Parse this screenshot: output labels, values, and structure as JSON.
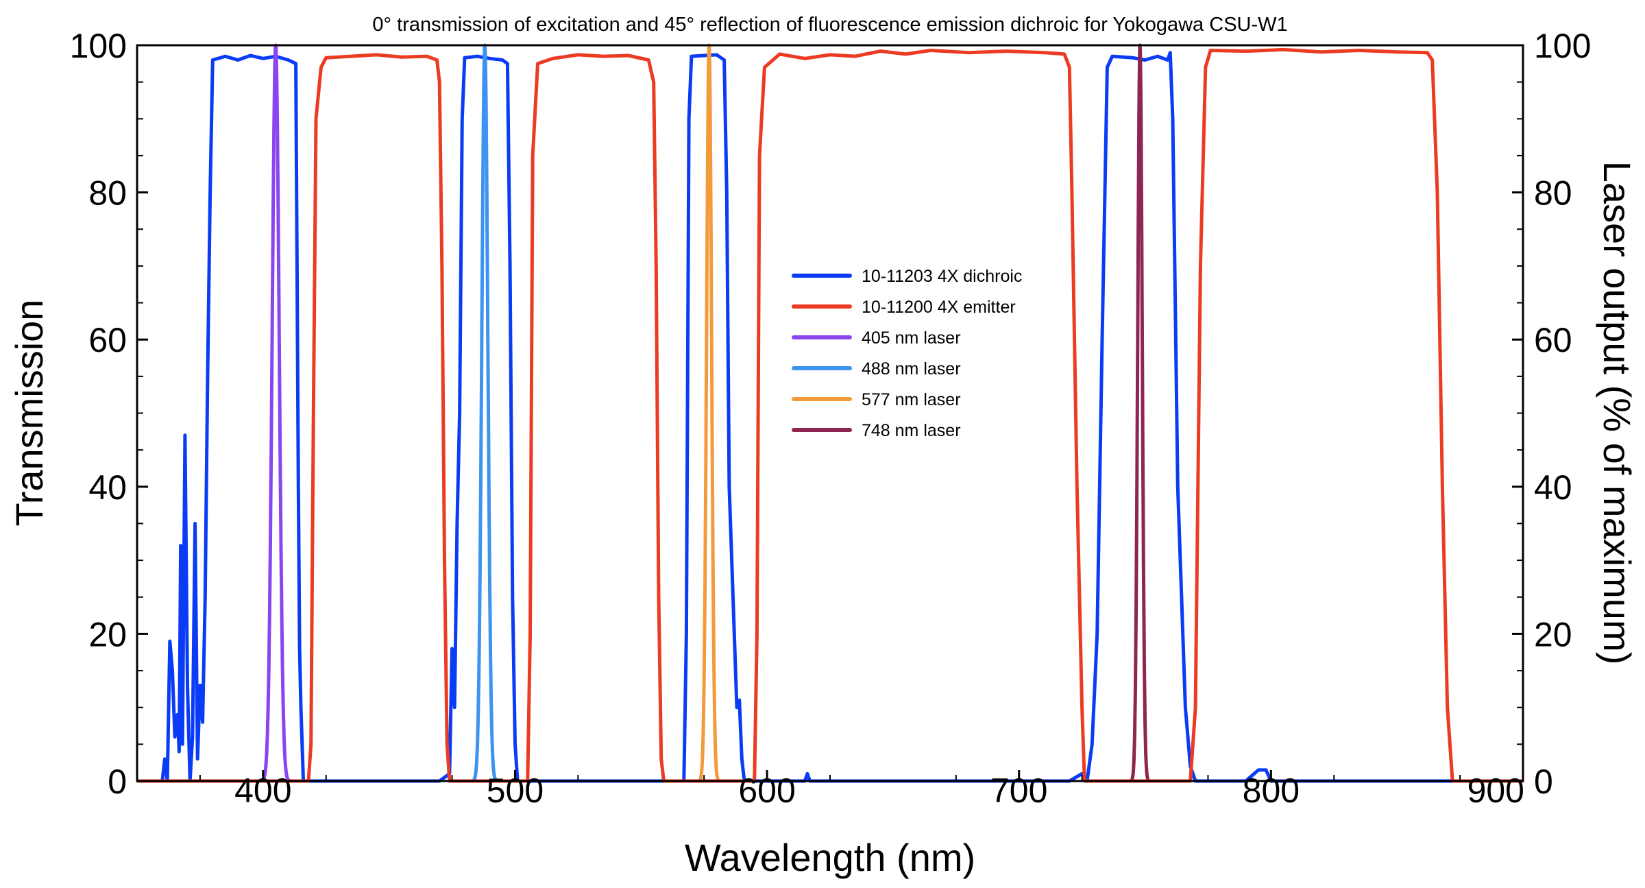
{
  "chart_data": {
    "type": "line",
    "title": "0° transmission of excitation and 45° reflection of fluorescence emission dichroic for Yokogawa CSU-W1",
    "xlabel": "Wavelength (nm)",
    "ylabel": "Transmission",
    "y2label": "Laser output (% of maximum)",
    "xlim": [
      350,
      900
    ],
    "ylim": [
      0,
      100
    ],
    "y2lim": [
      0,
      100
    ],
    "xticks": [
      "400",
      "500",
      "600",
      "700",
      "800",
      "900"
    ],
    "yticks": [
      "0",
      "20",
      "40",
      "60",
      "80",
      "100"
    ],
    "y2ticks": [
      "0",
      "20",
      "40",
      "60",
      "80",
      "100"
    ],
    "grid": false,
    "legend_position": "center",
    "series": [
      {
        "name": "10-11203 4X dichroic",
        "color": "#0a3cf5",
        "axis": "left",
        "points": [
          [
            350,
            0
          ],
          [
            360,
            0
          ],
          [
            361,
            3
          ],
          [
            362,
            0
          ],
          [
            363,
            19
          ],
          [
            364,
            15
          ],
          [
            365,
            6
          ],
          [
            366,
            9
          ],
          [
            366.7,
            4
          ],
          [
            367.3,
            32
          ],
          [
            368,
            5
          ],
          [
            369,
            47
          ],
          [
            370,
            13
          ],
          [
            371,
            0
          ],
          [
            372,
            6
          ],
          [
            373,
            35
          ],
          [
            374,
            3
          ],
          [
            375,
            13
          ],
          [
            376,
            8
          ],
          [
            377,
            25
          ],
          [
            378,
            55
          ],
          [
            379,
            80
          ],
          [
            380,
            98
          ],
          [
            385,
            98.5
          ],
          [
            390,
            98
          ],
          [
            395,
            98.6
          ],
          [
            400,
            98.2
          ],
          [
            405,
            98.5
          ],
          [
            410,
            98
          ],
          [
            413,
            97.5
          ],
          [
            414,
            40
          ],
          [
            414.5,
            18
          ],
          [
            415,
            10
          ],
          [
            416,
            0
          ],
          [
            470,
            0
          ],
          [
            474,
            1
          ],
          [
            475,
            18
          ],
          [
            476,
            10
          ],
          [
            477,
            35
          ],
          [
            478,
            50
          ],
          [
            479,
            90
          ],
          [
            480,
            98.3
          ],
          [
            485,
            98.5
          ],
          [
            490,
            98.2
          ],
          [
            495,
            98
          ],
          [
            497,
            97.5
          ],
          [
            498,
            70
          ],
          [
            499,
            25
          ],
          [
            500,
            5
          ],
          [
            501,
            0
          ],
          [
            567,
            0
          ],
          [
            568,
            20
          ],
          [
            569,
            90
          ],
          [
            570,
            98.5
          ],
          [
            575,
            98.6
          ],
          [
            580,
            98.7
          ],
          [
            583,
            98
          ],
          [
            584,
            80
          ],
          [
            585,
            40
          ],
          [
            587,
            20
          ],
          [
            588,
            10
          ],
          [
            589,
            11
          ],
          [
            590,
            3
          ],
          [
            591,
            0
          ],
          [
            615,
            0
          ],
          [
            616,
            1
          ],
          [
            617,
            0
          ],
          [
            720,
            0
          ],
          [
            725,
            1
          ],
          [
            727,
            0
          ],
          [
            729,
            5
          ],
          [
            731,
            20
          ],
          [
            733,
            60
          ],
          [
            735,
            97
          ],
          [
            737,
            98.5
          ],
          [
            745,
            98.3
          ],
          [
            750,
            98
          ],
          [
            755,
            98.5
          ],
          [
            759,
            98
          ],
          [
            760,
            99
          ],
          [
            761,
            90
          ],
          [
            763,
            40
          ],
          [
            766,
            10
          ],
          [
            768,
            2
          ],
          [
            770,
            0
          ],
          [
            790,
            0
          ],
          [
            795,
            1.5
          ],
          [
            798,
            1.5
          ],
          [
            800,
            0
          ],
          [
            900,
            0
          ]
        ]
      },
      {
        "name": "10-11200 4X emitter",
        "color": "#eb3c23",
        "axis": "left",
        "points": [
          [
            350,
            0
          ],
          [
            418,
            0
          ],
          [
            419,
            5
          ],
          [
            420,
            50
          ],
          [
            421,
            90
          ],
          [
            423,
            97
          ],
          [
            425,
            98.3
          ],
          [
            435,
            98.5
          ],
          [
            445,
            98.7
          ],
          [
            455,
            98.4
          ],
          [
            465,
            98.5
          ],
          [
            469,
            98
          ],
          [
            470,
            95
          ],
          [
            471,
            70
          ],
          [
            472,
            30
          ],
          [
            473,
            5
          ],
          [
            474,
            0
          ],
          [
            505,
            0
          ],
          [
            506,
            20
          ],
          [
            507,
            85
          ],
          [
            509,
            97.5
          ],
          [
            515,
            98.2
          ],
          [
            525,
            98.7
          ],
          [
            535,
            98.5
          ],
          [
            545,
            98.6
          ],
          [
            553,
            98
          ],
          [
            555,
            95
          ],
          [
            556,
            70
          ],
          [
            557,
            25
          ],
          [
            558,
            3
          ],
          [
            559,
            0
          ],
          [
            595,
            0
          ],
          [
            596,
            20
          ],
          [
            597,
            85
          ],
          [
            599,
            97
          ],
          [
            605,
            98.8
          ],
          [
            615,
            98.2
          ],
          [
            625,
            98.7
          ],
          [
            635,
            98.5
          ],
          [
            645,
            99.2
          ],
          [
            655,
            98.8
          ],
          [
            665,
            99.3
          ],
          [
            680,
            99
          ],
          [
            695,
            99.2
          ],
          [
            710,
            99
          ],
          [
            718,
            98.8
          ],
          [
            720,
            97
          ],
          [
            721,
            80
          ],
          [
            723,
            40
          ],
          [
            725,
            10
          ],
          [
            726,
            0
          ],
          [
            768,
            0
          ],
          [
            770,
            10
          ],
          [
            772,
            70
          ],
          [
            774,
            97
          ],
          [
            776,
            99.3
          ],
          [
            790,
            99.2
          ],
          [
            805,
            99.4
          ],
          [
            820,
            99.1
          ],
          [
            835,
            99.3
          ],
          [
            850,
            99.1
          ],
          [
            862,
            99
          ],
          [
            864,
            98
          ],
          [
            866,
            80
          ],
          [
            868,
            40
          ],
          [
            870,
            10
          ],
          [
            872,
            0
          ],
          [
            900,
            0
          ]
        ]
      },
      {
        "name": "405 nm laser",
        "color": "#8a45f0",
        "axis": "right",
        "peak": 405,
        "width": 1.4
      },
      {
        "name": "488 nm laser",
        "color": "#3d93f0",
        "axis": "right",
        "peak": 488,
        "width": 1.2
      },
      {
        "name": "577 nm laser",
        "color": "#f39a3b",
        "axis": "right",
        "peak": 577,
        "width": 1.0
      },
      {
        "name": "748 nm laser",
        "color": "#8d2650",
        "axis": "right",
        "peak": 748,
        "width": 0.9
      }
    ]
  }
}
